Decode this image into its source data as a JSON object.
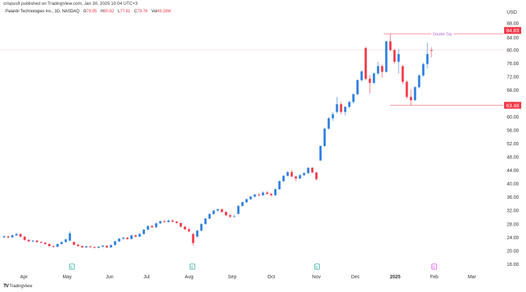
{
  "header": {
    "published": "crispus9 published on TradingView.com, Jan 30, 2025 10:04 UTC+3",
    "symbol": "Palantir Technologies Inc., 1D, NASDAQ",
    "o_label": "O",
    "o": "79.95",
    "h_label": "H",
    "h": "80.82",
    "l_label": "L",
    "l": "77.81",
    "c_label": "C",
    "c": "79.76",
    "vol_label": "Vol",
    "vol": "49.26M"
  },
  "brand": {
    "logo": "TV",
    "name": "TradingView"
  },
  "colors": {
    "up": "#2a7de1",
    "down": "#f23645",
    "level_line": "#f7a8b3",
    "annotation": "#b44fd6",
    "earnings_past": "#26a69a",
    "earnings_future": "#e040fb"
  },
  "chart_data": {
    "type": "candlestick",
    "title": "",
    "currency": "USD",
    "y_scale": "linear",
    "ylim": [
      16,
      88
    ],
    "y_ticks": [
      "88.00",
      "84.00",
      "80.00",
      "76.00",
      "72.00",
      "68.00",
      "60.00",
      "56.00",
      "52.00",
      "48.00",
      "44.00",
      "40.00",
      "36.00",
      "32.00",
      "28.00",
      "24.00",
      "20.00",
      "16.00"
    ],
    "x_ticks": [
      "Apr",
      "May",
      "Jun",
      "Jul",
      "Aug",
      "Sep",
      "Oct",
      "Nov",
      "Dec",
      "2025",
      "Feb",
      "Mar"
    ],
    "levels": [
      {
        "price": 84.83,
        "label": "84.83",
        "annotation": "Double Top"
      },
      {
        "price": 63.48,
        "label": "63.48",
        "annotation": ""
      },
      {
        "price": 80.0,
        "label": "",
        "annotation": ""
      }
    ],
    "earnings_markers": [
      {
        "label": "E",
        "month": "May",
        "status": "past"
      },
      {
        "label": "E",
        "month": "Aug",
        "status": "past"
      },
      {
        "label": "E",
        "month": "Nov",
        "status": "past"
      },
      {
        "label": "E",
        "month": "Feb",
        "status": "upcoming"
      }
    ],
    "candles_ohlc": [
      [
        24.0,
        24.6,
        23.8,
        24.3
      ],
      [
        24.3,
        24.5,
        23.7,
        24.0
      ],
      [
        24.0,
        24.9,
        23.9,
        24.6
      ],
      [
        24.6,
        25.4,
        24.4,
        25.0
      ],
      [
        25.0,
        25.2,
        24.0,
        24.2
      ],
      [
        24.2,
        24.3,
        23.0,
        23.2
      ],
      [
        23.2,
        23.5,
        22.6,
        22.8
      ],
      [
        22.8,
        23.3,
        22.5,
        23.0
      ],
      [
        23.0,
        23.2,
        22.4,
        22.6
      ],
      [
        22.6,
        22.9,
        22.2,
        22.4
      ],
      [
        22.4,
        22.6,
        21.8,
        22.0
      ],
      [
        22.0,
        22.2,
        21.2,
        21.4
      ],
      [
        21.4,
        21.6,
        20.9,
        21.2
      ],
      [
        21.2,
        22.2,
        21.0,
        22.0
      ],
      [
        22.0,
        22.8,
        21.8,
        22.6
      ],
      [
        22.6,
        23.6,
        22.4,
        23.4
      ],
      [
        23.0,
        25.8,
        22.9,
        25.2
      ],
      [
        22.6,
        22.8,
        21.6,
        21.8
      ],
      [
        21.8,
        22.0,
        21.2,
        21.4
      ],
      [
        21.4,
        21.6,
        20.8,
        21.0
      ],
      [
        21.0,
        21.5,
        20.8,
        21.3
      ],
      [
        21.3,
        21.5,
        20.9,
        21.1
      ],
      [
        21.1,
        21.3,
        20.7,
        20.9
      ],
      [
        20.9,
        21.4,
        20.7,
        21.2
      ],
      [
        21.2,
        21.7,
        21.0,
        21.5
      ],
      [
        21.5,
        21.6,
        20.8,
        21.0
      ],
      [
        21.0,
        21.9,
        20.9,
        21.7
      ],
      [
        21.7,
        23.0,
        21.6,
        22.8
      ],
      [
        22.8,
        23.8,
        22.6,
        23.6
      ],
      [
        23.6,
        24.1,
        23.3,
        23.9
      ],
      [
        23.9,
        24.1,
        23.3,
        23.5
      ],
      [
        23.5,
        24.8,
        23.4,
        24.6
      ],
      [
        24.6,
        24.8,
        24.0,
        24.2
      ],
      [
        24.2,
        25.2,
        24.1,
        25.0
      ],
      [
        25.0,
        26.5,
        24.9,
        26.3
      ],
      [
        26.3,
        27.6,
        26.1,
        27.4
      ],
      [
        27.4,
        27.7,
        26.8,
        27.0
      ],
      [
        27.0,
        28.4,
        26.9,
        28.2
      ],
      [
        28.2,
        29.1,
        28.0,
        28.8
      ],
      [
        28.8,
        29.3,
        28.4,
        28.6
      ],
      [
        28.6,
        29.4,
        28.4,
        29.0
      ],
      [
        29.0,
        29.5,
        28.5,
        28.7
      ],
      [
        28.7,
        28.9,
        28.1,
        28.3
      ],
      [
        28.3,
        28.5,
        27.0,
        27.2
      ],
      [
        27.2,
        27.5,
        26.2,
        26.4
      ],
      [
        26.4,
        27.0,
        25.5,
        25.8
      ],
      [
        25.0,
        25.3,
        21.5,
        22.3
      ],
      [
        24.2,
        26.2,
        24.0,
        26.0
      ],
      [
        26.0,
        28.2,
        25.8,
        28.0
      ],
      [
        28.0,
        29.8,
        27.8,
        29.6
      ],
      [
        29.6,
        31.2,
        29.4,
        31.0
      ],
      [
        31.0,
        32.2,
        30.8,
        32.0
      ],
      [
        32.0,
        32.6,
        31.7,
        32.4
      ],
      [
        32.4,
        32.6,
        31.4,
        31.6
      ],
      [
        31.6,
        31.8,
        30.4,
        30.6
      ],
      [
        30.6,
        30.9,
        29.8,
        30.2
      ],
      [
        30.2,
        30.8,
        29.9,
        30.3
      ],
      [
        31.0,
        33.6,
        30.9,
        33.4
      ],
      [
        33.4,
        34.7,
        33.2,
        34.5
      ],
      [
        34.5,
        35.6,
        34.3,
        35.4
      ],
      [
        35.4,
        36.4,
        35.2,
        36.2
      ],
      [
        36.2,
        37.0,
        35.9,
        36.8
      ],
      [
        36.8,
        37.2,
        36.3,
        36.6
      ],
      [
        36.6,
        37.8,
        36.4,
        37.4
      ],
      [
        37.4,
        37.9,
        36.8,
        37.0
      ],
      [
        37.0,
        37.3,
        36.2,
        36.6
      ],
      [
        36.6,
        38.6,
        36.4,
        38.4
      ],
      [
        38.4,
        41.0,
        38.2,
        40.8
      ],
      [
        40.8,
        42.6,
        40.5,
        42.4
      ],
      [
        42.4,
        43.8,
        42.2,
        43.5
      ],
      [
        43.5,
        44.2,
        42.0,
        42.2
      ],
      [
        42.2,
        42.5,
        40.8,
        41.6
      ],
      [
        41.6,
        42.9,
        41.4,
        42.6
      ],
      [
        42.6,
        43.5,
        42.3,
        43.2
      ],
      [
        43.2,
        45.0,
        43.0,
        44.8
      ],
      [
        44.8,
        45.0,
        43.2,
        43.4
      ],
      [
        43.4,
        43.6,
        41.0,
        41.4
      ],
      [
        47.0,
        51.5,
        46.8,
        51.3
      ],
      [
        51.3,
        56.8,
        51.0,
        56.5
      ],
      [
        56.5,
        60.0,
        56.2,
        59.6
      ],
      [
        59.6,
        61.5,
        58.8,
        60.8
      ],
      [
        61.5,
        66.0,
        61.0,
        63.8
      ],
      [
        63.8,
        64.5,
        60.8,
        61.5
      ],
      [
        61.5,
        63.3,
        60.4,
        63.0
      ],
      [
        63.0,
        64.8,
        62.5,
        64.5
      ],
      [
        64.5,
        67.0,
        64.0,
        66.8
      ],
      [
        66.8,
        71.3,
        66.5,
        71.0
      ],
      [
        71.0,
        74.0,
        70.6,
        73.6
      ],
      [
        80.6,
        81.0,
        71.0,
        71.4
      ],
      [
        71.4,
        72.5,
        67.0,
        70.2
      ],
      [
        70.2,
        73.3,
        69.8,
        73.0
      ],
      [
        73.0,
        76.5,
        72.5,
        75.2
      ],
      [
        75.2,
        75.6,
        71.8,
        73.5
      ],
      [
        73.5,
        82.8,
        73.2,
        82.6
      ],
      [
        82.6,
        84.83,
        79.6,
        80.0
      ],
      [
        80.0,
        80.4,
        75.8,
        76.5
      ],
      [
        76.5,
        80.2,
        73.0,
        78.8
      ],
      [
        75.2,
        75.5,
        69.8,
        70.5
      ],
      [
        70.5,
        71.0,
        65.4,
        66.0
      ],
      [
        66.0,
        68.2,
        63.48,
        65.0
      ],
      [
        65.0,
        69.2,
        64.8,
        68.9
      ],
      [
        68.9,
        72.8,
        68.5,
        72.4
      ],
      [
        72.4,
        76.2,
        72.0,
        75.8
      ],
      [
        75.8,
        82.2,
        74.5,
        78.8
      ],
      [
        79.95,
        80.82,
        77.81,
        79.76
      ]
    ]
  }
}
